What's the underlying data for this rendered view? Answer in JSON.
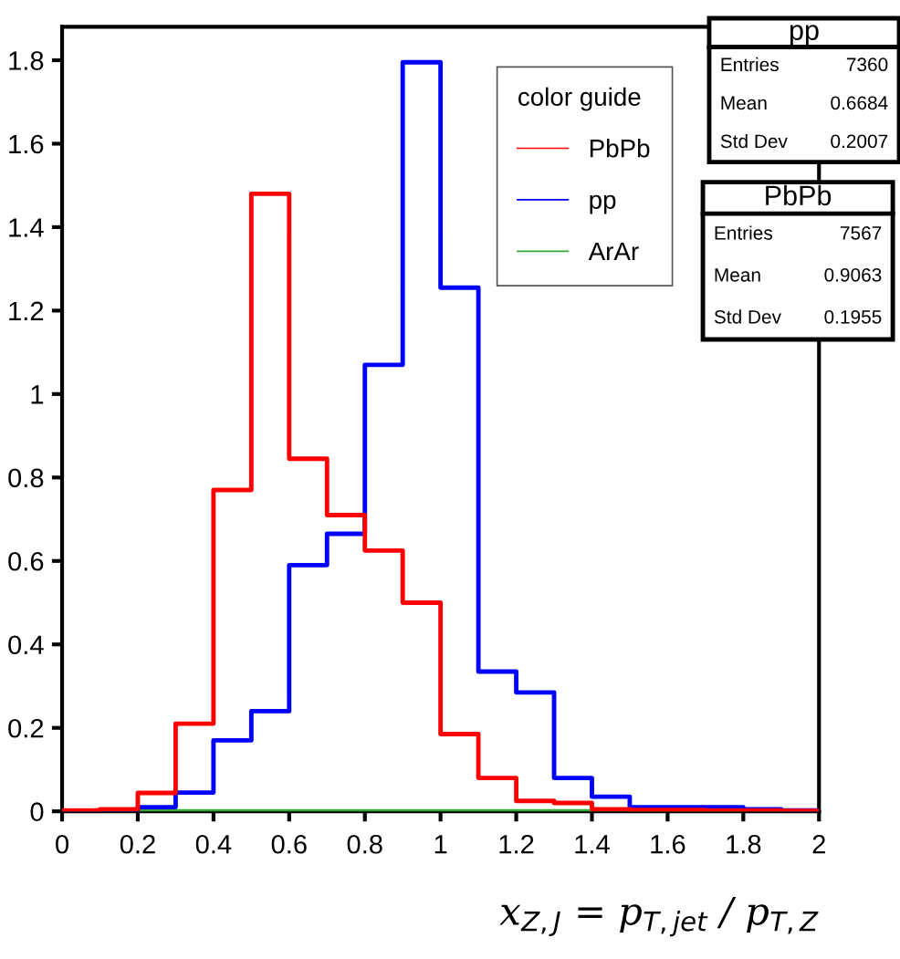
{
  "chart_data": {
    "type": "histogram",
    "bins": [
      0,
      0.1,
      0.2,
      0.3,
      0.4,
      0.5,
      0.6,
      0.7,
      0.8,
      0.9,
      1.0,
      1.1,
      1.2,
      1.3,
      1.4,
      1.5,
      1.6,
      1.7,
      1.8,
      1.9,
      2.0
    ],
    "series": [
      {
        "name": "PbPb",
        "color": "#ff0000",
        "values": [
          0.002,
          0.005,
          0.044,
          0.21,
          0.77,
          1.48,
          0.845,
          0.71,
          0.625,
          0.5,
          0.185,
          0.08,
          0.025,
          0.02,
          0.005,
          0.003,
          0.003,
          0.002,
          0.002,
          0.001
        ]
      },
      {
        "name": "pp",
        "color": "#0000ff",
        "values": [
          0,
          0,
          0.01,
          0.045,
          0.17,
          0.24,
          0.59,
          0.665,
          1.07,
          1.795,
          1.255,
          0.335,
          0.285,
          0.08,
          0.035,
          0.01,
          0.01,
          0.01,
          0.005,
          0.002
        ]
      },
      {
        "name": "ArAr",
        "color": "#33aa33",
        "values": [
          0,
          0,
          0,
          0,
          0,
          0,
          0,
          0,
          0,
          0,
          0,
          0,
          0,
          0,
          0,
          0,
          0,
          0,
          0,
          0
        ]
      }
    ],
    "legend": "top right",
    "legend_title": "color guide",
    "xlabel": "x$_{Z,J}$ = p$_{T,jet}$ / p$_{T,Z}$",
    "xlim": [
      0,
      2
    ],
    "xticks": [
      0,
      0.2,
      0.4,
      0.6,
      0.8,
      1,
      1.2,
      1.4,
      1.6,
      1.8,
      2
    ],
    "ylim": [
      0,
      1.88
    ],
    "yticks": [
      0,
      0.2,
      0.4,
      0.6,
      0.8,
      1,
      1.2,
      1.4,
      1.6,
      1.8
    ],
    "grid": false,
    "annotations": [
      "pp\nEntries 7360\nMean 0.6684\nStd Dev 0.2007",
      "PbPb\nEntries 7567\nMean 0.9063\nStd Dev 0.1955"
    ]
  }
}
